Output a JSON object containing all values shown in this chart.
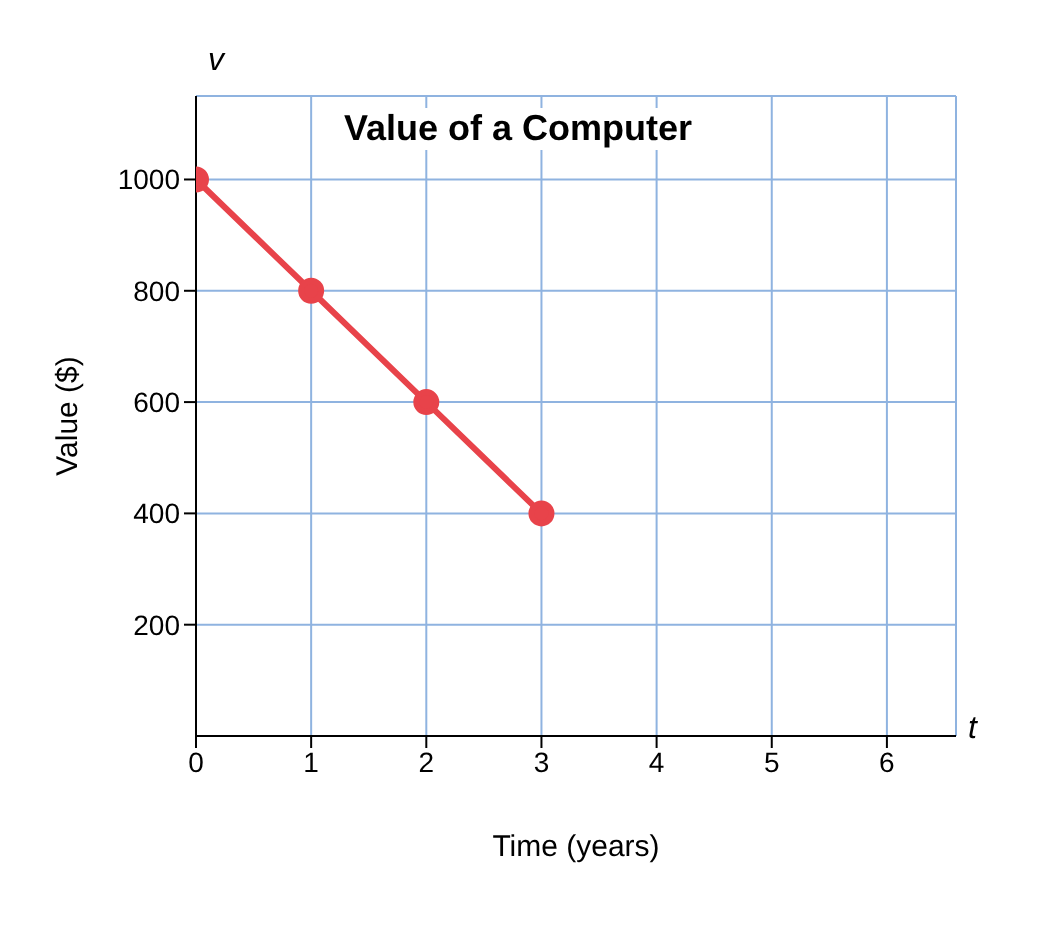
{
  "chart_data": {
    "type": "line",
    "title": "Value of a Computer",
    "xlabel": "Time (years)",
    "ylabel": "Value ($)",
    "x": [
      0,
      1,
      2,
      3
    ],
    "series": [
      {
        "color": "#e8434a",
        "values": [
          1000,
          800,
          600,
          400
        ]
      }
    ],
    "xlim": [
      0,
      6.6
    ],
    "ylim": [
      0,
      1150
    ],
    "xticks": [
      0,
      1,
      2,
      3,
      4,
      5,
      6
    ],
    "yticks": [
      200,
      400,
      600,
      800,
      1000
    ],
    "grid": true,
    "marker": "circle",
    "line_style": "solid",
    "annotations": [
      "v",
      "t"
    ]
  }
}
